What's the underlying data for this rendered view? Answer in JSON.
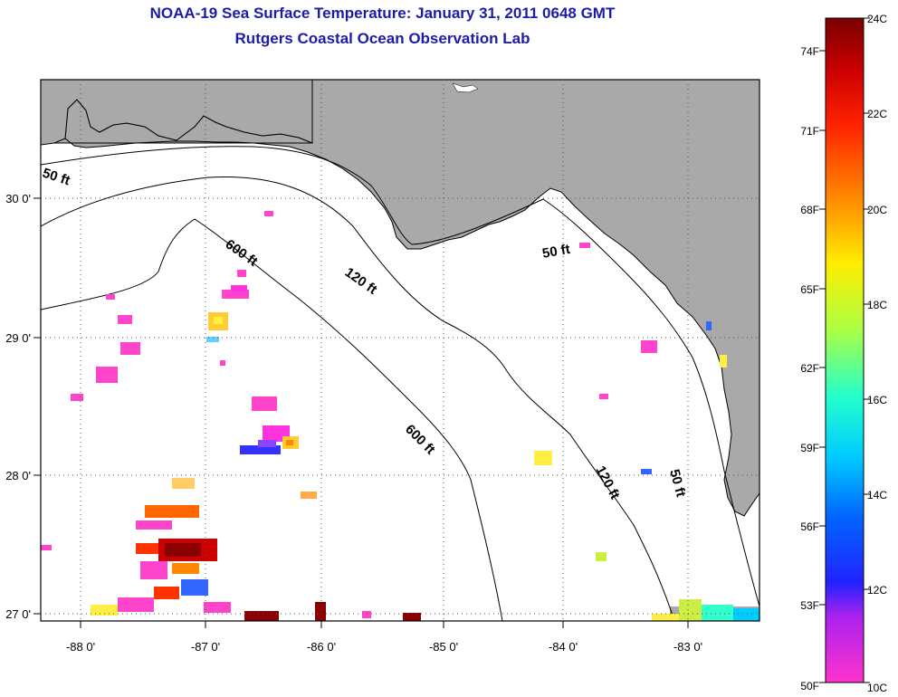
{
  "title": {
    "line1": "NOAA-19 Sea Surface Temperature:  January 31, 2011 0648 GMT",
    "line2": "Rutgers Coastal Ocean Observation Lab"
  },
  "map": {
    "lon_labels": [
      "-88 0'",
      "-87 0'",
      "-86 0'",
      "-85 0'",
      "-84 0'",
      "-83 0'"
    ],
    "lat_labels": [
      "30 0'",
      "29 0'",
      "28 0'",
      "27 0'"
    ],
    "contour_labels": [
      "50 ft",
      "600 ft",
      "120 ft",
      "50 ft",
      "600 ft",
      "120 ft",
      "50 ft"
    ],
    "colors": {
      "land": "#a9a9a9",
      "ocean": "#ffffff",
      "grid": "#555555"
    }
  },
  "colorbar": {
    "celsius_labels": [
      "24C",
      "22C",
      "20C",
      "18C",
      "16C",
      "14C",
      "12C",
      "10C"
    ],
    "fahrenheit_labels": [
      "74F",
      "71F",
      "68F",
      "65F",
      "62F",
      "59F",
      "56F",
      "53F",
      "50F"
    ],
    "range_c": [
      10,
      24
    ]
  }
}
